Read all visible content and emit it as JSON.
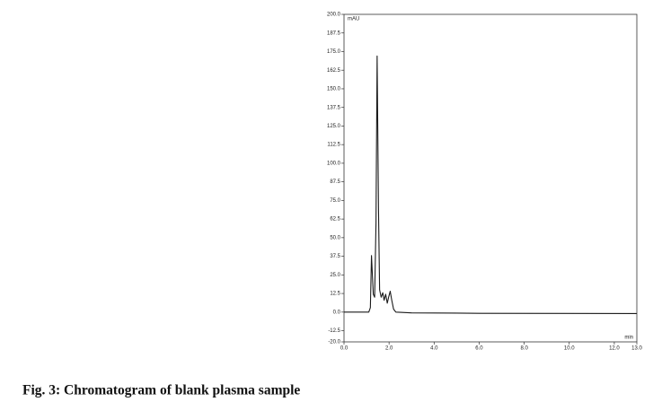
{
  "chart_data": {
    "type": "line",
    "caption": "Fig. 3: Chromatogram of blank plasma sample",
    "y_label": "mAU",
    "x_label": "min",
    "x": [
      0,
      1.1,
      1.17,
      1.22,
      1.3,
      1.36,
      1.42,
      1.47,
      1.53,
      1.58,
      1.65,
      1.72,
      1.78,
      1.85,
      1.92,
      1.98,
      2.05,
      2.12,
      2.2,
      2.3,
      3,
      6,
      13
    ],
    "series": [
      {
        "name": "blank plasma",
        "color": "#1a1a1a",
        "values": [
          0,
          0,
          3,
          38,
          12,
          10,
          60,
          172,
          70,
          15,
          10,
          13,
          8,
          12,
          6,
          10,
          14,
          8,
          2,
          0,
          -0.5,
          -0.8,
          -1
        ]
      }
    ],
    "xlim": [
      0,
      13
    ],
    "xticks": [
      {
        "value": 0,
        "label": "0.0"
      },
      {
        "value": 2,
        "label": "2.0"
      },
      {
        "value": 4,
        "label": "4.0"
      },
      {
        "value": 6,
        "label": "6.0"
      },
      {
        "value": 8,
        "label": "8.0"
      },
      {
        "value": 10,
        "label": "10.0"
      },
      {
        "value": 12,
        "label": "12.0"
      },
      {
        "value": 13,
        "label": "13.0"
      }
    ],
    "ylim": [
      -20,
      200
    ],
    "yticks": [
      {
        "value": -20,
        "label": "-20.0"
      },
      -12.5,
      {
        "value": 0,
        "label": "0.0"
      },
      12.5,
      {
        "value": 25,
        "label": "25.0"
      },
      37.5,
      {
        "value": 50,
        "label": "50.0"
      },
      62.5,
      {
        "value": 75,
        "label": "75.0"
      },
      87.5,
      {
        "value": 100,
        "label": "100.0"
      },
      112.5,
      {
        "value": 125,
        "label": "125.0"
      },
      137.5,
      {
        "value": 150,
        "label": "150.0"
      },
      162.5,
      {
        "value": 175,
        "label": "175.0"
      },
      187.5,
      {
        "value": 200,
        "label": "200.0"
      }
    ],
    "grid": false
  }
}
